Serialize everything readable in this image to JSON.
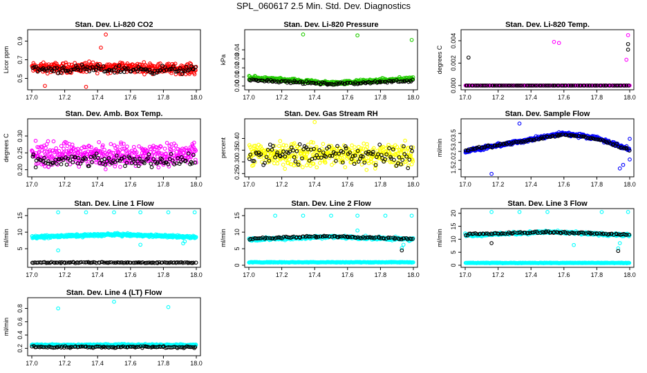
{
  "page": {
    "title": "SPL_060617  2.5 Min. Std. Dev. Diagnostics"
  },
  "colors": {
    "black_series": "#000000",
    "red": "#ff0000",
    "green": "#22cc00",
    "magenta": "#ff00ff",
    "yellow": "#ffff00",
    "blue": "#0000ff",
    "cyan": "#00ffff"
  },
  "chart_data": [
    {
      "type": "scatter",
      "title": "Stan. Dev. Li-820 CO2",
      "ylabel": "Licor ppm",
      "xlim": [
        17.0,
        18.0
      ],
      "ylim": [
        0.4,
        1.0
      ],
      "xticks": [
        "17.0",
        "17.2",
        "17.4",
        "17.6",
        "17.8",
        "18.0"
      ],
      "yticks": [
        {
          "v": 0.5,
          "l": "0.5"
        },
        {
          "v": 0.7,
          "l": "0.7"
        },
        {
          "v": 0.9,
          "l": "0.9"
        }
      ],
      "series": [
        {
          "color": "red",
          "model": "band",
          "center": [
            [
              17.0,
              0.61
            ],
            [
              17.5,
              0.62
            ],
            [
              18.0,
              0.6
            ]
          ],
          "spread": 0.08,
          "n": 420,
          "outliers": [
            [
              17.45,
              0.97
            ],
            [
              17.42,
              0.83
            ],
            [
              17.08,
              0.42
            ],
            [
              17.33,
              0.41
            ]
          ]
        },
        {
          "color": "black",
          "model": "band",
          "center": [
            [
              17.0,
              0.6
            ],
            [
              18.0,
              0.59
            ]
          ],
          "spread": 0.06,
          "n": 110,
          "outliers": []
        }
      ]
    },
    {
      "type": "scatter",
      "title": "Stan. Dev. Li-820 Pressure",
      "ylabel": "kPa",
      "xlim": [
        17.0,
        18.0
      ],
      "ylim": [
        -0.002,
        0.06
      ],
      "xticks": [
        "17.0",
        "17.2",
        "17.4",
        "17.6",
        "17.8",
        "18.0"
      ],
      "yticks": [
        {
          "v": 0.0,
          "l": "0.00"
        },
        {
          "v": 0.01,
          "l": "0.01"
        },
        {
          "v": 0.02,
          "l": "0.02"
        },
        {
          "v": 0.03,
          "l": "0.03"
        },
        {
          "v": 0.04,
          "l": "0.04"
        }
      ],
      "series": [
        {
          "color": "green",
          "model": "band",
          "center": [
            [
              17.0,
              0.009
            ],
            [
              17.5,
              0.003
            ],
            [
              18.0,
              0.008
            ]
          ],
          "spread": 0.003,
          "n": 420,
          "outliers": [
            [
              17.33,
              0.057
            ],
            [
              17.66,
              0.056
            ],
            [
              17.99,
              0.051
            ]
          ]
        },
        {
          "color": "black",
          "model": "band",
          "center": [
            [
              17.0,
              0.007
            ],
            [
              17.5,
              0.002
            ],
            [
              18.0,
              0.006
            ]
          ],
          "spread": 0.002,
          "n": 110,
          "outliers": []
        }
      ]
    },
    {
      "type": "scatter",
      "title": "Stan. Dev. Li-820 Temp.",
      "ylabel": "degrees C",
      "xlim": [
        17.0,
        18.0
      ],
      "ylim": [
        -0.0002,
        0.0048
      ],
      "xticks": [
        "17.0",
        "17.2",
        "17.4",
        "17.6",
        "17.8",
        "18.0"
      ],
      "yticks": [
        {
          "v": 0.0,
          "l": "0.000"
        },
        {
          "v": 0.002,
          "l": "0.002"
        },
        {
          "v": 0.004,
          "l": "0.004"
        }
      ],
      "series": [
        {
          "color": "magenta",
          "model": "band",
          "center": [
            [
              17.0,
              0.0
            ],
            [
              18.0,
              0.0
            ]
          ],
          "spread": 0.0,
          "n": 300,
          "outliers": [
            [
              17.54,
              0.0039
            ],
            [
              17.57,
              0.0038
            ],
            [
              17.99,
              0.0045
            ],
            [
              17.98,
              0.0023
            ]
          ]
        },
        {
          "color": "black",
          "model": "band",
          "center": [
            [
              17.0,
              0.0
            ],
            [
              18.0,
              0.0
            ]
          ],
          "spread": 0.0,
          "n": 90,
          "outliers": [
            [
              17.02,
              0.0025
            ],
            [
              17.99,
              0.0037
            ],
            [
              17.99,
              0.0032
            ]
          ]
        }
      ]
    },
    {
      "type": "scatter",
      "title": "Stan. Dev. Amb. Box Temp.",
      "ylabel": "degrees C",
      "xlim": [
        17.0,
        18.0
      ],
      "ylim": [
        0.185,
        0.345
      ],
      "xticks": [
        "17.0",
        "17.2",
        "17.4",
        "17.6",
        "17.8",
        "18.0"
      ],
      "yticks": [
        {
          "v": 0.2,
          "l": "0.20"
        },
        {
          "v": 0.25,
          "l": "0.25"
        },
        {
          "v": 0.3,
          "l": "0.30"
        }
      ],
      "series": [
        {
          "color": "magenta",
          "model": "band",
          "center": [
            [
              17.0,
              0.245
            ],
            [
              18.0,
              0.245
            ]
          ],
          "spread": 0.05,
          "n": 420,
          "outliers": []
        },
        {
          "color": "black",
          "model": "band",
          "center": [
            [
              17.0,
              0.225
            ],
            [
              18.0,
              0.228
            ]
          ],
          "spread": 0.025,
          "n": 110,
          "outliers": []
        }
      ]
    },
    {
      "type": "scatter",
      "title": "Stan. Dev. Gas Stream RH",
      "ylabel": "percent",
      "xlim": [
        17.0,
        18.0
      ],
      "ylim": [
        0.245,
        0.475
      ],
      "xticks": [
        "17.0",
        "17.2",
        "17.4",
        "17.6",
        "17.8",
        "18.0"
      ],
      "yticks": [
        {
          "v": 0.25,
          "l": "0.25"
        },
        {
          "v": 0.3,
          "l": "0.30"
        },
        {
          "v": 0.35,
          "l": "0.35"
        },
        {
          "v": 0.4,
          "l": "0.40"
        }
      ],
      "series": [
        {
          "color": "yellow",
          "model": "band",
          "center": [
            [
              17.0,
              0.33
            ],
            [
              18.0,
              0.33
            ]
          ],
          "spread": 0.075,
          "n": 420,
          "outliers": [
            [
              17.4,
              0.47
            ]
          ]
        },
        {
          "color": "black",
          "model": "band",
          "center": [
            [
              17.0,
              0.33
            ],
            [
              18.0,
              0.33
            ]
          ],
          "spread": 0.07,
          "n": 110,
          "outliers": []
        }
      ]
    },
    {
      "type": "scatter",
      "title": "Stan. Dev. Sample Flow",
      "ylabel": "ml/min",
      "xlim": [
        17.0,
        18.0
      ],
      "ylim": [
        1.2,
        4.2
      ],
      "xticks": [
        "17.0",
        "17.2",
        "17.4",
        "17.6",
        "17.8",
        "18.0"
      ],
      "yticks": [
        {
          "v": 1.5,
          "l": "1.5"
        },
        {
          "v": 2.0,
          "l": "2.0"
        },
        {
          "v": 2.5,
          "l": "2.5"
        },
        {
          "v": 3.0,
          "l": "3.0"
        },
        {
          "v": 3.5,
          "l": "3.5"
        }
      ],
      "series": [
        {
          "color": "blue",
          "model": "band",
          "center": [
            [
              17.0,
              2.5
            ],
            [
              17.3,
              3.0
            ],
            [
              17.6,
              3.5
            ],
            [
              17.8,
              3.25
            ],
            [
              18.0,
              2.6
            ]
          ],
          "spread": 0.15,
          "n": 420,
          "outliers": [
            [
              17.33,
              4.05
            ],
            [
              17.16,
              1.25
            ],
            [
              17.94,
              1.55
            ],
            [
              17.96,
              1.75
            ],
            [
              18.0,
              2.05
            ],
            [
              18.0,
              3.2
            ]
          ]
        },
        {
          "color": "black",
          "model": "band",
          "center": [
            [
              17.0,
              2.55
            ],
            [
              17.3,
              3.0
            ],
            [
              17.6,
              3.45
            ],
            [
              17.8,
              3.2
            ],
            [
              18.0,
              2.6
            ]
          ],
          "spread": 0.1,
          "n": 100,
          "outliers": []
        }
      ]
    },
    {
      "type": "scatter",
      "title": "Stan. Dev. Line 1 Flow",
      "ylabel": "ml/min",
      "xlim": [
        17.0,
        18.0
      ],
      "ylim": [
        0.0,
        16.5
      ],
      "xticks": [
        "17.0",
        "17.2",
        "17.4",
        "17.6",
        "17.8",
        "18.0"
      ],
      "yticks": [
        {
          "v": 5,
          "l": "5"
        },
        {
          "v": 10,
          "l": "10"
        },
        {
          "v": 15,
          "l": "15"
        }
      ],
      "series": [
        {
          "color": "cyan",
          "model": "band",
          "center": [
            [
              17.0,
              8.5
            ],
            [
              17.5,
              9.3
            ],
            [
              18.0,
              8.5
            ]
          ],
          "spread": 0.6,
          "n": 420,
          "outliers": [
            [
              17.16,
              16
            ],
            [
              17.33,
              16
            ],
            [
              17.5,
              16
            ],
            [
              17.66,
              16
            ],
            [
              17.83,
              16
            ],
            [
              17.99,
              16
            ],
            [
              17.16,
              4.5
            ],
            [
              17.66,
              6.2
            ],
            [
              17.92,
              6.6
            ],
            [
              17.93,
              7.2
            ]
          ]
        },
        {
          "color": "black",
          "model": "band",
          "center": [
            [
              17.0,
              0.8
            ],
            [
              18.0,
              0.8
            ]
          ],
          "spread": 0.2,
          "n": 110,
          "outliers": []
        }
      ]
    },
    {
      "type": "scatter",
      "title": "Stan. Dev. Line 2 Flow",
      "ylabel": "ml/min",
      "xlim": [
        17.0,
        18.0
      ],
      "ylim": [
        0.0,
        16.5
      ],
      "xticks": [
        "17.0",
        "17.2",
        "17.4",
        "17.6",
        "17.8",
        "18.0"
      ],
      "yticks": [
        {
          "v": 0,
          "l": "0"
        },
        {
          "v": 5,
          "l": "5"
        },
        {
          "v": 10,
          "l": "10"
        },
        {
          "v": 15,
          "l": "15"
        }
      ],
      "series": [
        {
          "color": "cyan",
          "model": "band",
          "center": [
            [
              17.0,
              7.8
            ],
            [
              17.5,
              8.6
            ],
            [
              18.0,
              7.8
            ]
          ],
          "spread": 0.7,
          "n": 330,
          "outliers": [
            [
              17.16,
              15
            ],
            [
              17.33,
              15
            ],
            [
              17.5,
              15
            ],
            [
              17.66,
              15
            ],
            [
              17.83,
              15
            ],
            [
              17.99,
              15
            ],
            [
              17.66,
              10.5
            ],
            [
              17.93,
              5.2
            ],
            [
              17.94,
              6.2
            ]
          ]
        },
        {
          "color": "cyan",
          "model": "band",
          "center": [
            [
              17.0,
              0.9
            ],
            [
              18.0,
              0.9
            ]
          ],
          "spread": 0.15,
          "n": 300,
          "outliers": []
        },
        {
          "color": "black",
          "model": "band",
          "center": [
            [
              17.0,
              8.0
            ],
            [
              17.5,
              8.8
            ],
            [
              18.0,
              8.0
            ]
          ],
          "spread": 0.4,
          "n": 100,
          "outliers": [
            [
              17.93,
              4.5
            ]
          ]
        }
      ]
    },
    {
      "type": "scatter",
      "title": "Stan. Dev. Line 3 Flow",
      "ylabel": "ml/min",
      "xlim": [
        17.0,
        18.0
      ],
      "ylim": [
        0.0,
        21.0
      ],
      "xticks": [
        "17.0",
        "17.2",
        "17.4",
        "17.6",
        "17.8",
        "18.0"
      ],
      "yticks": [
        {
          "v": 0,
          "l": "0"
        },
        {
          "v": 5,
          "l": "5"
        },
        {
          "v": 10,
          "l": "10"
        },
        {
          "v": 15,
          "l": "15"
        },
        {
          "v": 20,
          "l": "20"
        }
      ],
      "series": [
        {
          "color": "cyan",
          "model": "band",
          "center": [
            [
              17.0,
              11.5
            ],
            [
              17.5,
              12.8
            ],
            [
              18.0,
              11.5
            ]
          ],
          "spread": 0.8,
          "n": 330,
          "outliers": [
            [
              17.16,
              20.5
            ],
            [
              17.33,
              20.5
            ],
            [
              17.5,
              20.5
            ],
            [
              17.83,
              20.5
            ],
            [
              17.99,
              20.5
            ],
            [
              17.66,
              7.8
            ],
            [
              17.93,
              6.5
            ],
            [
              17.94,
              8.5
            ]
          ]
        },
        {
          "color": "cyan",
          "model": "band",
          "center": [
            [
              17.0,
              0.9
            ],
            [
              18.0,
              0.9
            ]
          ],
          "spread": 0.15,
          "n": 300,
          "outliers": []
        },
        {
          "color": "black",
          "model": "band",
          "center": [
            [
              17.0,
              11.8
            ],
            [
              17.5,
              12.8
            ],
            [
              18.0,
              11.8
            ]
          ],
          "spread": 0.5,
          "n": 100,
          "outliers": [
            [
              17.16,
              8.5
            ],
            [
              17.93,
              5.5
            ]
          ]
        }
      ]
    },
    {
      "type": "scatter",
      "title": "Stan. Dev. Line 4 (LT) Flow",
      "ylabel": "ml/min",
      "xlim": [
        17.0,
        18.0
      ],
      "ylim": [
        0.12,
        0.93
      ],
      "xticks": [
        "17.0",
        "17.2",
        "17.4",
        "17.6",
        "17.8",
        "18.0"
      ],
      "yticks": [
        {
          "v": 0.2,
          "l": "0.2"
        },
        {
          "v": 0.4,
          "l": "0.4"
        },
        {
          "v": 0.6,
          "l": "0.6"
        },
        {
          "v": 0.8,
          "l": "0.8"
        }
      ],
      "series": [
        {
          "color": "cyan",
          "model": "band",
          "center": [
            [
              17.0,
              0.25
            ],
            [
              18.0,
              0.25
            ]
          ],
          "spread": 0.02,
          "n": 420,
          "outliers": [
            [
              17.16,
              0.8
            ],
            [
              17.5,
              0.9
            ],
            [
              17.83,
              0.82
            ]
          ]
        },
        {
          "color": "black",
          "model": "band",
          "center": [
            [
              17.0,
              0.22
            ],
            [
              18.0,
              0.22
            ]
          ],
          "spread": 0.02,
          "n": 110,
          "outliers": []
        }
      ]
    }
  ]
}
